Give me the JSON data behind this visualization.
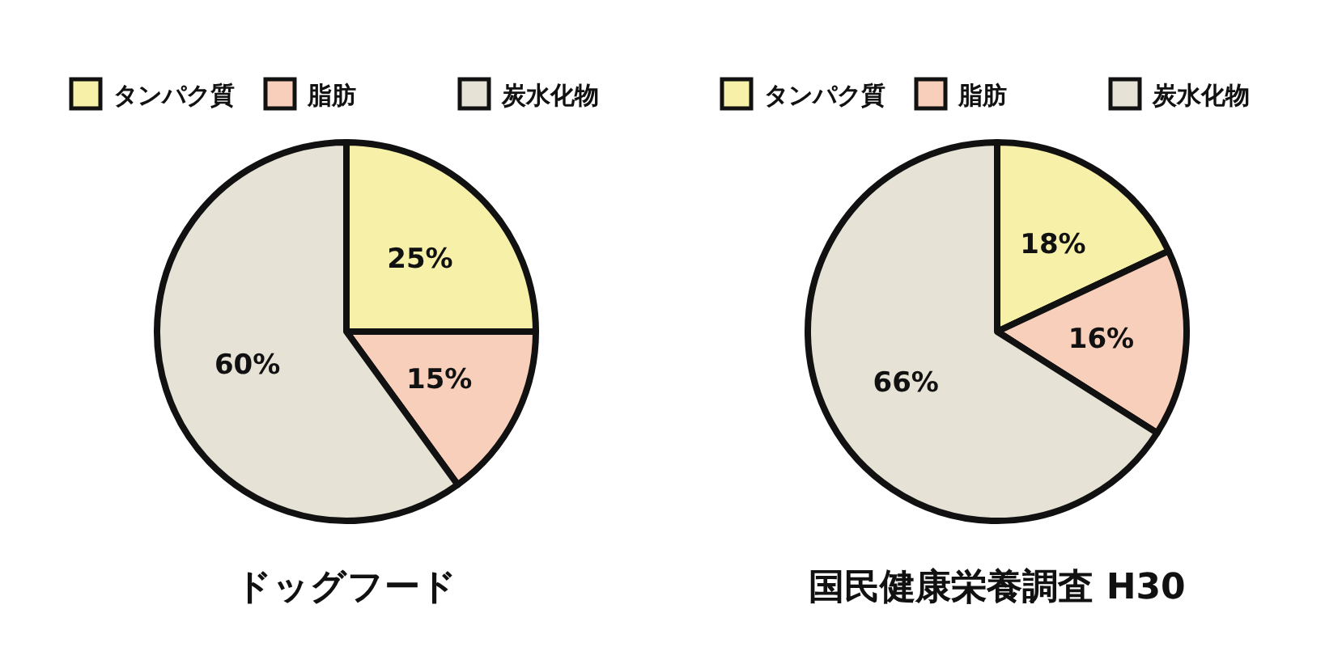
{
  "chart_data": [
    {
      "type": "pie",
      "title": "ドッグフード",
      "categories": [
        "タンパク質",
        "脂肪",
        "炭水化物"
      ],
      "values": [
        25,
        15,
        60
      ],
      "value_labels": [
        "25%",
        "15%",
        "60%"
      ],
      "colors": [
        "#f7f0a8",
        "#f8cfba",
        "#e6e2d6"
      ],
      "legend": "top"
    },
    {
      "type": "pie",
      "title": "国民健康栄養調査 H30",
      "categories": [
        "タンパク質",
        "脂肪",
        "炭水化物"
      ],
      "values": [
        18,
        16,
        66
      ],
      "value_labels": [
        "18%",
        "16%",
        "66%"
      ],
      "colors": [
        "#f7f0a8",
        "#f8cfba",
        "#e6e2d6"
      ],
      "legend": "top"
    }
  ]
}
